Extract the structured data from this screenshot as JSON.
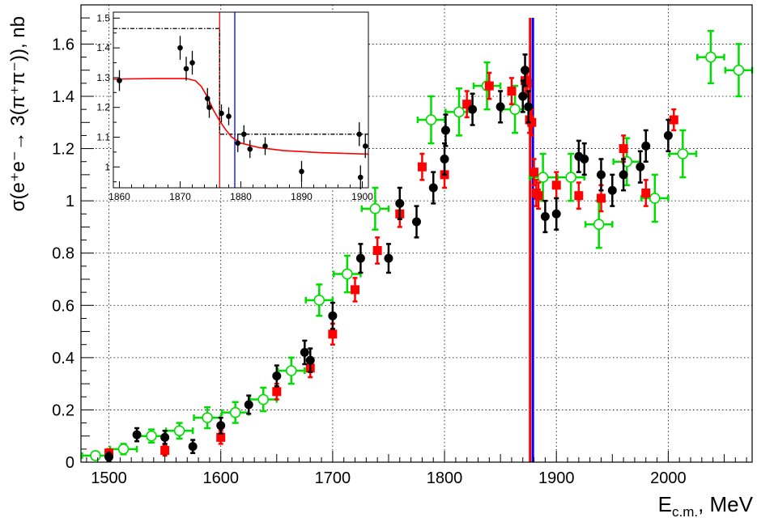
{
  "chart_data": [
    {
      "type": "scatter",
      "title": "",
      "xlabel": "E",
      "xlabel_sub": "c.m.",
      "xlabel_unit": ", MeV",
      "ylabel": "σ(e⁺e⁻→ 3(π⁺π⁻)), nb",
      "xlim": [
        1475,
        2075
      ],
      "ylim": [
        0,
        1.75
      ],
      "xticks": [
        1500,
        1600,
        1700,
        1800,
        1900,
        2000
      ],
      "yticks": [
        0,
        0.2,
        0.4,
        0.6,
        0.8,
        1,
        1.2,
        1.4,
        1.6
      ],
      "grid": true,
      "vertical_lines": [
        {
          "x": 1876.5,
          "color": "#ff0000"
        },
        {
          "x": 1879.0,
          "color": "#0000ff"
        }
      ],
      "series": [
        {
          "marker": "filled-circle",
          "color": "#000000",
          "points": [
            {
              "x": 1500,
              "y": 0.02,
              "err": 0.015
            },
            {
              "x": 1525,
              "y": 0.105,
              "err": 0.025
            },
            {
              "x": 1550,
              "y": 0.095,
              "err": 0.025
            },
            {
              "x": 1575,
              "y": 0.06,
              "err": 0.025
            },
            {
              "x": 1600,
              "y": 0.14,
              "err": 0.03
            },
            {
              "x": 1625,
              "y": 0.22,
              "err": 0.035
            },
            {
              "x": 1650,
              "y": 0.33,
              "err": 0.04
            },
            {
              "x": 1675,
              "y": 0.42,
              "err": 0.045
            },
            {
              "x": 1680,
              "y": 0.39,
              "err": 0.045
            },
            {
              "x": 1700,
              "y": 0.56,
              "err": 0.05
            },
            {
              "x": 1725,
              "y": 0.78,
              "err": 0.055
            },
            {
              "x": 1750,
              "y": 0.78,
              "err": 0.055
            },
            {
              "x": 1760,
              "y": 0.99,
              "err": 0.06
            },
            {
              "x": 1775,
              "y": 0.92,
              "err": 0.06
            },
            {
              "x": 1790,
              "y": 1.05,
              "err": 0.06
            },
            {
              "x": 1800,
              "y": 1.16,
              "err": 0.06
            },
            {
              "x": 1801,
              "y": 1.27,
              "err": 0.06
            },
            {
              "x": 1825,
              "y": 1.35,
              "err": 0.06
            },
            {
              "x": 1850,
              "y": 1.36,
              "err": 0.06
            },
            {
              "x": 1870,
              "y": 1.4,
              "err": 0.06
            },
            {
              "x": 1872,
              "y": 1.5,
              "err": 0.06
            },
            {
              "x": 1875,
              "y": 1.36,
              "err": 0.06
            },
            {
              "x": 1890,
              "y": 0.94,
              "err": 0.06
            },
            {
              "x": 1900,
              "y": 0.95,
              "err": 0.06
            },
            {
              "x": 1920,
              "y": 1.17,
              "err": 0.06
            },
            {
              "x": 1925,
              "y": 1.16,
              "err": 0.06
            },
            {
              "x": 1940,
              "y": 1.1,
              "err": 0.06
            },
            {
              "x": 1950,
              "y": 1.04,
              "err": 0.06
            },
            {
              "x": 1960,
              "y": 1.1,
              "err": 0.06
            },
            {
              "x": 1975,
              "y": 1.13,
              "err": 0.06
            },
            {
              "x": 1980,
              "y": 1.21,
              "err": 0.06
            },
            {
              "x": 2000,
              "y": 1.25,
              "err": 0.06
            }
          ]
        },
        {
          "marker": "filled-square",
          "color": "#ff0000",
          "points": [
            {
              "x": 1500,
              "y": 0.035,
              "err": 0.015
            },
            {
              "x": 1550,
              "y": 0.045,
              "err": 0.02
            },
            {
              "x": 1600,
              "y": 0.095,
              "err": 0.025
            },
            {
              "x": 1650,
              "y": 0.27,
              "err": 0.03
            },
            {
              "x": 1680,
              "y": 0.36,
              "err": 0.035
            },
            {
              "x": 1700,
              "y": 0.49,
              "err": 0.04
            },
            {
              "x": 1720,
              "y": 0.66,
              "err": 0.045
            },
            {
              "x": 1740,
              "y": 0.81,
              "err": 0.05
            },
            {
              "x": 1760,
              "y": 0.95,
              "err": 0.05
            },
            {
              "x": 1780,
              "y": 1.13,
              "err": 0.05
            },
            {
              "x": 1800,
              "y": 1.1,
              "err": 0.05
            },
            {
              "x": 1820,
              "y": 1.37,
              "err": 0.05
            },
            {
              "x": 1840,
              "y": 1.44,
              "err": 0.05
            },
            {
              "x": 1860,
              "y": 1.42,
              "err": 0.05
            },
            {
              "x": 1872,
              "y": 1.46,
              "err": 0.05
            },
            {
              "x": 1874,
              "y": 1.45,
              "err": 0.05
            },
            {
              "x": 1876,
              "y": 1.31,
              "err": 0.05
            },
            {
              "x": 1878,
              "y": 1.3,
              "err": 0.05
            },
            {
              "x": 1880,
              "y": 1.11,
              "err": 0.05
            },
            {
              "x": 1882,
              "y": 1.03,
              "err": 0.05
            },
            {
              "x": 1884,
              "y": 1.02,
              "err": 0.05
            },
            {
              "x": 1900,
              "y": 1.06,
              "err": 0.05
            },
            {
              "x": 1920,
              "y": 1.02,
              "err": 0.05
            },
            {
              "x": 1940,
              "y": 1.01,
              "err": 0.05
            },
            {
              "x": 1960,
              "y": 1.2,
              "err": 0.05
            },
            {
              "x": 1980,
              "y": 1.03,
              "err": 0.05
            },
            {
              "x": 2005,
              "y": 1.31,
              "err": 0.04
            }
          ]
        },
        {
          "marker": "open-circle",
          "color": "#00dd00",
          "xerr": 12,
          "points": [
            {
              "x": 1488,
              "y": 0.025,
              "err": 0.015
            },
            {
              "x": 1513,
              "y": 0.05,
              "err": 0.02
            },
            {
              "x": 1538,
              "y": 0.1,
              "err": 0.025
            },
            {
              "x": 1563,
              "y": 0.12,
              "err": 0.03
            },
            {
              "x": 1588,
              "y": 0.17,
              "err": 0.04
            },
            {
              "x": 1613,
              "y": 0.19,
              "err": 0.04
            },
            {
              "x": 1638,
              "y": 0.24,
              "err": 0.045
            },
            {
              "x": 1663,
              "y": 0.35,
              "err": 0.05
            },
            {
              "x": 1688,
              "y": 0.62,
              "err": 0.06
            },
            {
              "x": 1713,
              "y": 0.72,
              "err": 0.07
            },
            {
              "x": 1738,
              "y": 0.97,
              "err": 0.08
            },
            {
              "x": 1788,
              "y": 1.31,
              "err": 0.09
            },
            {
              "x": 1813,
              "y": 1.34,
              "err": 0.09
            },
            {
              "x": 1838,
              "y": 1.44,
              "err": 0.09
            },
            {
              "x": 1863,
              "y": 1.35,
              "err": 0.09
            },
            {
              "x": 1888,
              "y": 1.09,
              "err": 0.09
            },
            {
              "x": 1913,
              "y": 1.09,
              "err": 0.09
            },
            {
              "x": 1938,
              "y": 0.91,
              "err": 0.09
            },
            {
              "x": 1963,
              "y": 1.15,
              "err": 0.09
            },
            {
              "x": 1988,
              "y": 1.01,
              "err": 0.09
            },
            {
              "x": 2013,
              "y": 1.18,
              "err": 0.09
            },
            {
              "x": 2038,
              "y": 1.55,
              "err": 0.1
            },
            {
              "x": 2063,
              "y": 1.5,
              "err": 0.1
            }
          ]
        }
      ]
    },
    {
      "type": "scatter",
      "title": "",
      "xlim": [
        1859,
        1901
      ],
      "ylim": [
        0.93,
        1.52
      ],
      "xticks": [
        1860,
        1870,
        1880,
        1890,
        1900
      ],
      "yticks": [
        1,
        1.1,
        1.2,
        1.3,
        1.4,
        1.5
      ],
      "ytick_labels": [
        "1",
        "1.1",
        "1.2",
        "1.3",
        "1.4",
        "1.5"
      ],
      "grid": false,
      "vertical_lines": [
        {
          "x": 1876.5,
          "color": "#ff0000"
        },
        {
          "x": 1879.0,
          "color": "#0000ff"
        }
      ],
      "step_line": {
        "color": "#000000",
        "style": "dash-dot",
        "points": [
          [
            1859,
            1.465
          ],
          [
            1876.5,
            1.465
          ],
          [
            1876.5,
            1.11
          ],
          [
            1901,
            1.11
          ]
        ]
      },
      "fit_curve": {
        "color": "#ff0000",
        "points": [
          [
            1859,
            1.295
          ],
          [
            1866,
            1.297
          ],
          [
            1871,
            1.297
          ],
          [
            1872.5,
            1.29
          ],
          [
            1873.5,
            1.27
          ],
          [
            1874.5,
            1.235
          ],
          [
            1875.5,
            1.19
          ],
          [
            1876.5,
            1.155
          ],
          [
            1877.5,
            1.125
          ],
          [
            1878.5,
            1.1
          ],
          [
            1880,
            1.08
          ],
          [
            1883,
            1.065
          ],
          [
            1887,
            1.055
          ],
          [
            1893,
            1.048
          ],
          [
            1901,
            1.043
          ]
        ]
      },
      "series": [
        {
          "marker": "filled-circle",
          "color": "#000000",
          "points": [
            {
              "x": 1860,
              "y": 1.29,
              "err": 0.035
            },
            {
              "x": 1870,
              "y": 1.4,
              "err": 0.04
            },
            {
              "x": 1871,
              "y": 1.33,
              "err": 0.04
            },
            {
              "x": 1872,
              "y": 1.35,
              "err": 0.04
            },
            {
              "x": 1874.5,
              "y": 1.23,
              "err": 0.035
            },
            {
              "x": 1874.8,
              "y": 1.2,
              "err": 0.035
            },
            {
              "x": 1876.8,
              "y": 1.18,
              "err": 0.03
            },
            {
              "x": 1878,
              "y": 1.17,
              "err": 0.03
            },
            {
              "x": 1879.5,
              "y": 1.08,
              "err": 0.03
            },
            {
              "x": 1880.5,
              "y": 1.11,
              "err": 0.03
            },
            {
              "x": 1881.5,
              "y": 1.06,
              "err": 0.03
            },
            {
              "x": 1884,
              "y": 1.07,
              "err": 0.03
            },
            {
              "x": 1890,
              "y": 0.985,
              "err": 0.035
            },
            {
              "x": 1899.5,
              "y": 1.11,
              "err": 0.04
            },
            {
              "x": 1899.7,
              "y": 0.965,
              "err": 0.04
            },
            {
              "x": 1900.5,
              "y": 1.07,
              "err": 0.04
            }
          ]
        }
      ]
    }
  ]
}
